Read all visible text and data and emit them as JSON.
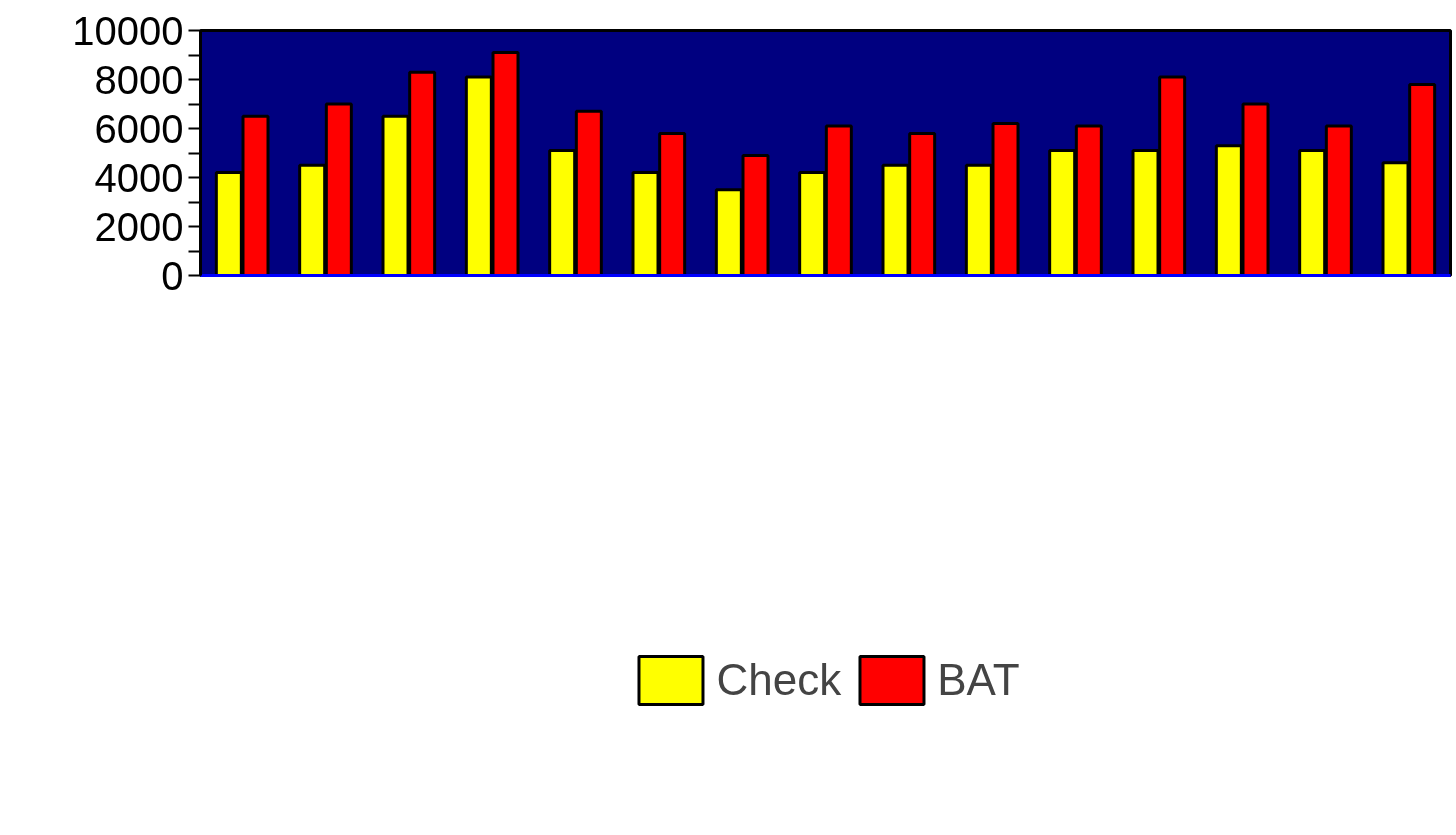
{
  "chart_data": {
    "type": "bar",
    "categories": [
      null,
      null,
      null,
      null,
      null,
      null,
      null,
      null,
      null,
      null,
      null,
      null,
      null,
      null,
      null
    ],
    "series": [
      {
        "name": "Check",
        "color": "#ffff00",
        "values": [
          4200,
          4500,
          6500,
          8100,
          5100,
          4200,
          3500,
          4200,
          4500,
          4500,
          5100,
          5100,
          5300,
          5100,
          4600
        ]
      },
      {
        "name": "BAT",
        "color": "#ff0000",
        "values": [
          6500,
          7000,
          8300,
          9100,
          6700,
          5800,
          4900,
          6100,
          5800,
          6200,
          6100,
          8100,
          7000,
          6100,
          7800
        ]
      }
    ],
    "ylim": [
      0,
      10000
    ],
    "yticks": [
      0,
      {
        "value": 1000,
        "label": null
      },
      2000,
      {
        "value": 3000,
        "label": null
      },
      4000,
      {
        "value": 5000,
        "label": null
      },
      6000,
      {
        "value": 7000,
        "label": null
      },
      8000,
      {
        "value": 9000,
        "label": null
      },
      10000
    ],
    "tick_labels": "y",
    "grid": false,
    "legend": "bottom"
  }
}
